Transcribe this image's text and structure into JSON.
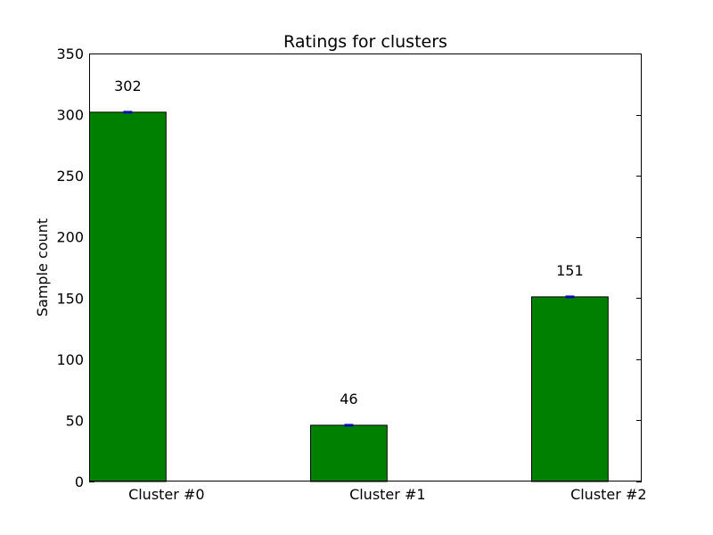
{
  "chart_data": {
    "type": "bar",
    "title": "Ratings for clusters",
    "xlabel": "",
    "ylabel": "Sample count",
    "categories": [
      "Cluster #0",
      "Cluster #1",
      "Cluster #2"
    ],
    "values": [
      302,
      46,
      151
    ],
    "data_labels": [
      "302",
      "46",
      "151"
    ],
    "ylim": [
      0,
      350
    ],
    "yticks": [
      0,
      50,
      100,
      150,
      200,
      250,
      300,
      350
    ],
    "ytick_labels": [
      "0",
      "50",
      "100",
      "150",
      "200",
      "250",
      "300",
      "350"
    ],
    "bar_color": "#008000",
    "error_bar_color": "#0000ff",
    "grid": false,
    "legend": "none"
  }
}
